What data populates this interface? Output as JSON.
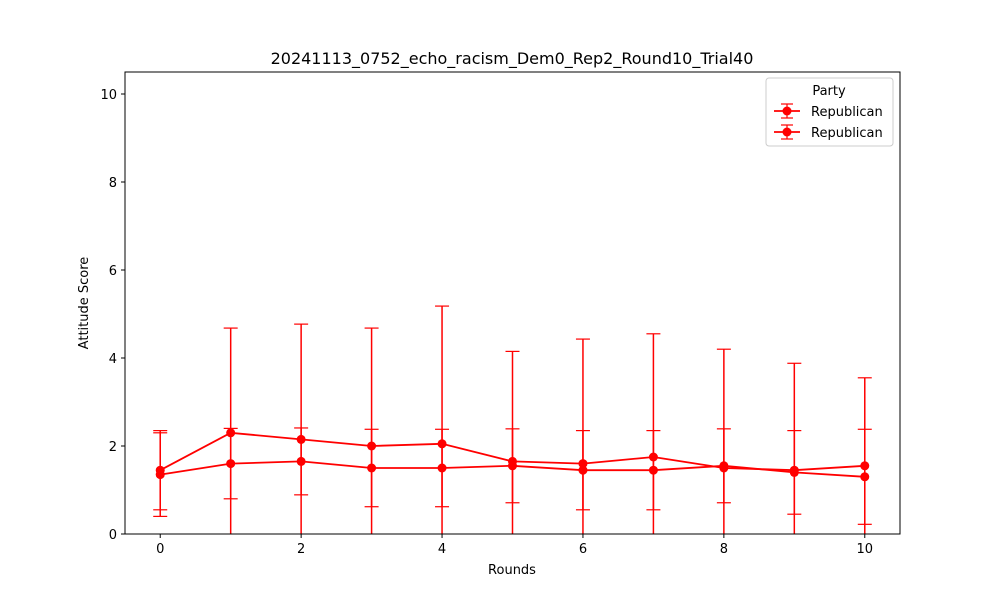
{
  "chart_data": {
    "type": "line",
    "title": "20241113_0752_echo_racism_Dem0_Rep2_Round10_Trial40",
    "xlabel": "Rounds",
    "ylabel": "Attitude Score",
    "xlim": [
      -0.5,
      10.5
    ],
    "ylim": [
      0,
      10.5
    ],
    "xticks": [
      0,
      2,
      4,
      6,
      8,
      10
    ],
    "yticks": [
      0,
      2,
      4,
      6,
      8,
      10
    ],
    "legend": {
      "title": "Party",
      "position": "top-right"
    },
    "color": "#ff0000",
    "series": [
      {
        "name": "Republican",
        "x": [
          0,
          1,
          2,
          3,
          4,
          5,
          6,
          7,
          8,
          9,
          10
        ],
        "y": [
          1.45,
          2.3,
          2.15,
          2.0,
          2.05,
          1.65,
          1.6,
          1.75,
          1.5,
          1.45,
          1.55
        ],
        "err": [
          0.9,
          2.38,
          2.62,
          2.68,
          3.13,
          2.5,
          2.83,
          2.8,
          2.7,
          2.43,
          2.0
        ]
      },
      {
        "name": "Republican",
        "x": [
          0,
          1,
          2,
          3,
          4,
          5,
          6,
          7,
          8,
          9,
          10
        ],
        "y": [
          1.35,
          1.6,
          1.65,
          1.5,
          1.5,
          1.55,
          1.45,
          1.45,
          1.55,
          1.4,
          1.3
        ],
        "err": [
          0.95,
          0.8,
          0.76,
          0.88,
          0.88,
          0.84,
          0.9,
          0.9,
          0.84,
          0.95,
          1.08
        ]
      }
    ]
  }
}
